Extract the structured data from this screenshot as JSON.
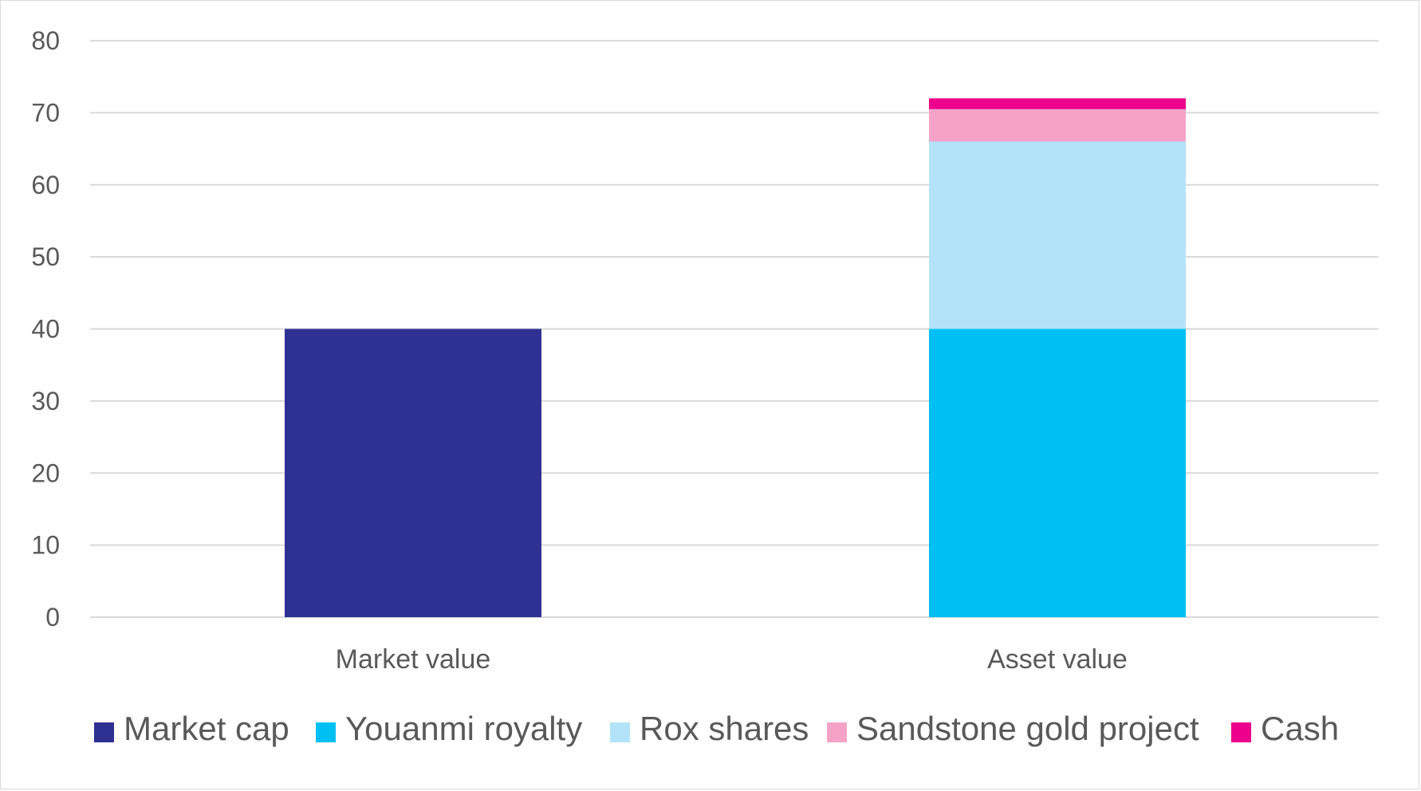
{
  "chart_data": {
    "type": "bar",
    "stacked": true,
    "categories": [
      "Market value",
      "Asset value"
    ],
    "series": [
      {
        "name": "Market cap",
        "color": "#2e3192",
        "values": [
          40,
          0
        ]
      },
      {
        "name": "Youanmi royalty",
        "color": "#00c0f3",
        "values": [
          0,
          40
        ]
      },
      {
        "name": "Rox shares",
        "color": "#b3e3f9",
        "values": [
          0,
          26
        ]
      },
      {
        "name": "Sandstone gold project",
        "color": "#f4a3c7",
        "values": [
          0,
          4.5
        ]
      },
      {
        "name": "Cash",
        "color": "#ec008c",
        "values": [
          0,
          1.5
        ]
      }
    ],
    "yticks": [
      "0",
      "10",
      "20",
      "30",
      "40",
      "50",
      "60",
      "70",
      "80"
    ],
    "ylim": [
      0,
      80
    ],
    "grid": true,
    "legend_position": "bottom"
  }
}
